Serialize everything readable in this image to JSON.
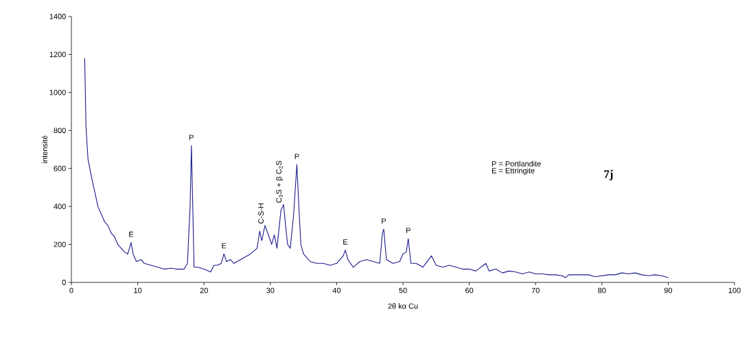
{
  "chart_data": {
    "type": "line",
    "xlabel": "2θ kα Cu",
    "ylabel": "intensité",
    "xlim": [
      0,
      100
    ],
    "ylim": [
      0,
      1400
    ],
    "xticks": [
      0,
      10,
      20,
      30,
      40,
      50,
      60,
      70,
      80,
      90,
      100
    ],
    "yticks": [
      0,
      200,
      400,
      600,
      800,
      1000,
      1200,
      1400
    ],
    "grid": false,
    "marker": "none",
    "line_style": "solid",
    "series": [
      {
        "color": "#1a1a8c",
        "x": [
          2,
          2.2,
          2.5,
          3,
          3.5,
          4,
          4.5,
          5,
          5.5,
          6,
          6.5,
          7,
          7.5,
          8,
          8.5,
          9,
          9.3,
          9.8,
          10.5,
          11,
          12,
          13,
          14,
          15,
          16,
          17,
          17.5,
          17.9,
          18.1,
          18.3,
          18.5,
          19,
          20,
          21,
          21.5,
          22,
          22.6,
          23,
          23.4,
          24,
          24.5,
          25,
          26,
          27,
          28,
          28.4,
          28.7,
          29.2,
          29.7,
          30.2,
          30.6,
          31,
          31.6,
          32,
          32.3,
          32.6,
          33,
          33.5,
          34,
          34.3,
          34.6,
          35,
          36,
          37,
          38,
          39,
          40,
          41,
          41.3,
          41.7,
          42.5,
          43.5,
          44.5,
          45.5,
          46.5,
          46.9,
          47.1,
          47.5,
          48.5,
          49.5,
          50,
          50.5,
          50.8,
          51.2,
          52,
          53,
          54.3,
          55,
          56,
          57,
          58,
          59,
          60,
          61,
          62.5,
          63,
          64,
          65,
          66,
          67,
          68,
          69,
          70,
          71,
          72,
          73,
          74,
          74.5,
          75,
          76,
          78,
          79,
          80,
          81,
          82,
          83,
          84,
          85,
          86,
          87,
          88,
          89,
          90
        ],
        "values": [
          1180,
          820,
          650,
          560,
          480,
          400,
          360,
          320,
          300,
          260,
          240,
          200,
          180,
          160,
          150,
          210,
          150,
          110,
          120,
          100,
          90,
          80,
          70,
          75,
          70,
          70,
          100,
          400,
          720,
          400,
          80,
          80,
          70,
          55,
          90,
          90,
          100,
          150,
          110,
          120,
          100,
          110,
          130,
          150,
          180,
          270,
          220,
          300,
          250,
          200,
          250,
          180,
          380,
          410,
          300,
          200,
          180,
          350,
          620,
          400,
          200,
          150,
          110,
          100,
          100,
          90,
          100,
          140,
          170,
          120,
          80,
          110,
          120,
          110,
          100,
          260,
          280,
          120,
          100,
          110,
          150,
          160,
          230,
          100,
          100,
          80,
          140,
          90,
          80,
          90,
          80,
          70,
          70,
          60,
          100,
          60,
          70,
          50,
          60,
          55,
          45,
          55,
          45,
          45,
          40,
          40,
          35,
          25,
          40,
          40,
          40,
          30,
          35,
          40,
          40,
          50,
          45,
          50,
          40,
          35,
          40,
          35,
          25
        ]
      }
    ],
    "annotations": [
      {
        "text": "E",
        "x": 9,
        "y": 210
      },
      {
        "text": "P",
        "x": 18.1,
        "y": 720
      },
      {
        "text": "E",
        "x": 23,
        "y": 150
      },
      {
        "text": "C-S-H",
        "x": 29.2,
        "y": 300
      },
      {
        "text": "C$_{3}$S + β C$_{2}$S",
        "x": 32,
        "y": 410
      },
      {
        "text": "P",
        "x": 34,
        "y": 620
      },
      {
        "text": "E",
        "x": 41.3,
        "y": 170
      },
      {
        "text": "P",
        "x": 47.1,
        "y": 280
      },
      {
        "text": "P",
        "x": 50.8,
        "y": 230
      },
      "P = Portlandite",
      "E = Ettringite",
      "7j"
    ]
  }
}
